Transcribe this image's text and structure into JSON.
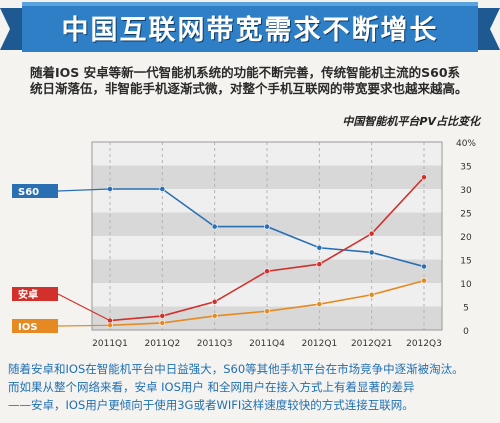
{
  "header": {
    "title": "中国互联网带宽需求不断增长"
  },
  "intro": {
    "text": "随着IOS 安卓等新一代智能机系统的功能不断完善，传统智能机主流的S60系统日渐落伍，非智能手机逐渐式微，对整个手机互联网的带宽要求也越来越高。"
  },
  "chart_data": {
    "type": "line",
    "title": "中国智能机平台PV占比变化",
    "categories": [
      "2011Q1",
      "2011Q2",
      "2011Q3",
      "2011Q4",
      "2012Q1",
      "2012Q21",
      "2012Q3"
    ],
    "yticks": [
      "0",
      "5",
      "10",
      "15",
      "20",
      "25",
      "30",
      "35",
      "40%"
    ],
    "ylim": [
      0,
      40
    ],
    "grid": "horizontal bands",
    "series": [
      {
        "name": "S60",
        "color": "#2b6fb3",
        "values": [
          30,
          30,
          22,
          22,
          17.5,
          16.5,
          13.5
        ]
      },
      {
        "name": "安卓",
        "color": "#d2302b",
        "values": [
          2,
          3,
          6,
          12.5,
          14,
          20.5,
          32.5
        ]
      },
      {
        "name": "IOS",
        "color": "#e58a22",
        "values": [
          1,
          1.5,
          3,
          4,
          5.5,
          7.5,
          10.5
        ]
      }
    ]
  },
  "footer": {
    "line1": "随着安卓和IOS在智能机平台中日益强大，S60等其他手机平台在市场竞争中逐渐被淘汰。",
    "line2": "而如果从整个网络来看，安卓 IOS用户 和全网用户在接入方式上有着显著的差异",
    "line3": "——安卓，IOS用户更倾向于使用3G或者WIFI这样速度较快的方式连接互联网。"
  }
}
